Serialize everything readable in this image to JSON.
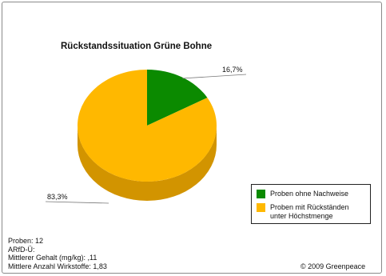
{
  "chart_data": {
    "type": "pie",
    "title": "Rückstandssituation Grüne Bohne",
    "style": "3d",
    "slices": [
      {
        "label": "Proben ohne Nachweise",
        "value": 16.7,
        "value_label": "16,7%",
        "color": "#0b8a00"
      },
      {
        "label": "Proben mit Rückständen unter Höchstmenge",
        "value": 83.3,
        "value_label": "83,3%",
        "color": "#ffb800"
      }
    ],
    "legend_placement": "bottom-right"
  },
  "legend": {
    "items": [
      {
        "label": "Proben ohne Nachweise",
        "color": "#0b8a00"
      },
      {
        "label": "Proben mit Rückständen\nunter Höchstmenge",
        "color": "#ffb800"
      }
    ]
  },
  "stats": {
    "proben": "Proben: 12",
    "arfd": "ARfD-Ü:",
    "gehalt": "Mittlerer Gehalt (mg/kg): ,11",
    "wirkstoffe": "Mittlere Anzahl Wirkstoffe: 1,83"
  },
  "footer": {
    "copyright": "© 2009 Greenpeace"
  },
  "colors": {
    "green_top": "#0b8a00",
    "green_side": "#066000",
    "yellow_top": "#ffb800",
    "yellow_side": "#d29400"
  }
}
